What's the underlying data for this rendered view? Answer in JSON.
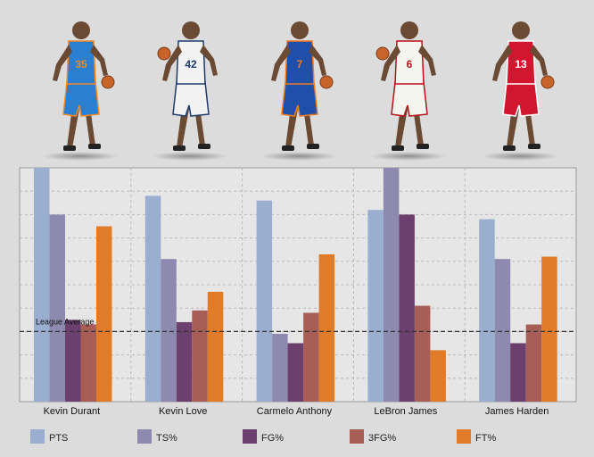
{
  "players": [
    {
      "name": "Kevin Durant",
      "jersey_color": "#2b7fd1",
      "trim_color": "#f08a24",
      "number": "35"
    },
    {
      "name": "Kevin Love",
      "jersey_color": "#f2f2f2",
      "trim_color": "#1d3a6b",
      "number": "42"
    },
    {
      "name": "Carmelo Anthony",
      "jersey_color": "#1f4fa8",
      "trim_color": "#f07a20",
      "number": "7"
    },
    {
      "name": "LeBron James",
      "jersey_color": "#f5f5f0",
      "trim_color": "#b5121b",
      "number": "6"
    },
    {
      "name": "James Harden",
      "jersey_color": "#d0172f",
      "trim_color": "#ffffff",
      "number": "13"
    }
  ],
  "chart_data": {
    "type": "bar",
    "categories": [
      "Kevin Durant",
      "Kevin Love",
      "Carmelo Anthony",
      "LeBron James",
      "James Harden"
    ],
    "series": [
      {
        "name": "PTS",
        "color": "#9aaed0",
        "values": [
          100,
          88,
          86,
          82,
          78
        ]
      },
      {
        "name": "TS%",
        "color": "#8e8aaf",
        "values": [
          80,
          61,
          29,
          100,
          61
        ]
      },
      {
        "name": "FG%",
        "color": "#6b3f6e",
        "values": [
          35,
          34,
          25,
          80,
          25
        ]
      },
      {
        "name": "3FG%",
        "color": "#a65e56",
        "values": [
          33,
          39,
          38,
          41,
          33
        ]
      },
      {
        "name": "FT%",
        "color": "#e07b29",
        "values": [
          75,
          47,
          63,
          22,
          62
        ]
      }
    ],
    "ylim": [
      0,
      100
    ],
    "reference_line": {
      "label": "League Average",
      "value": 30
    },
    "grid": true,
    "legend_position": "bottom"
  }
}
